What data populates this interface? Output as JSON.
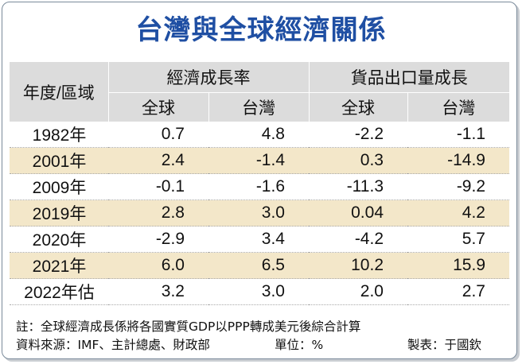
{
  "title": "台灣與全球經濟關係",
  "header": {
    "region_label": "年度/區域",
    "groups": [
      "經濟成長率",
      "貨品出口量成長"
    ],
    "subheaders": [
      "全球",
      "台灣",
      "全球",
      "台灣"
    ]
  },
  "rows": [
    {
      "year": "1982年",
      "values": [
        "0.7",
        "4.8",
        "-2.2",
        "-1.1"
      ]
    },
    {
      "year": "2001年",
      "values": [
        "2.4",
        "-1.4",
        "0.3",
        "-14.9"
      ]
    },
    {
      "year": "2009年",
      "values": [
        "-0.1",
        "-1.6",
        "-11.3",
        "-9.2"
      ]
    },
    {
      "year": "2019年",
      "values": [
        "2.8",
        "3.0",
        "0.04",
        "4.2"
      ]
    },
    {
      "year": "2020年",
      "values": [
        "-2.9",
        "3.4",
        "-4.2",
        "5.7"
      ]
    },
    {
      "year": "2021年",
      "values": [
        "6.0",
        "6.5",
        "10.2",
        "15.9"
      ]
    },
    {
      "year": "2022年估",
      "values": [
        "3.2",
        "3.0",
        "2.0",
        "2.7"
      ]
    }
  ],
  "footer": {
    "note": "註：全球經濟成長係將各國實質GDP以PPP轉成美元後綜合計算",
    "source": "資料來源：IMF、主計總處、財政部",
    "unit": "單位：%",
    "maker": "製表：于國欽"
  },
  "colors": {
    "title": "#1f4fa3",
    "header_bg": "#dcdcdc",
    "alt_row_bg": "#f3e7c9"
  }
}
